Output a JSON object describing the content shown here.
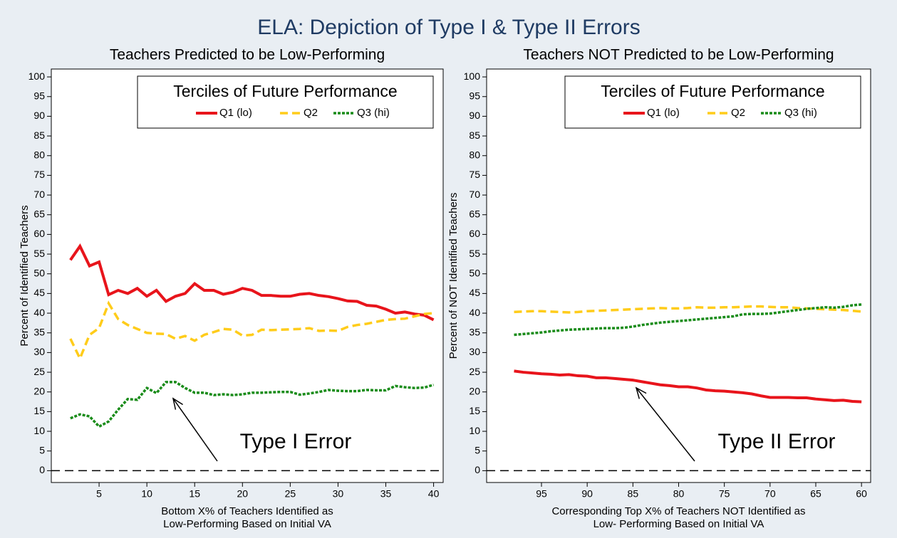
{
  "title": "ELA: Depiction of Type I & Type II Errors",
  "chart_data": [
    {
      "type": "line",
      "title": "Teachers Predicted to be Low-Performing",
      "xlabel": [
        "Bottom X% of Teachers Identified as",
        "Low-Performing Based on Initial VA"
      ],
      "ylabel": "Percent of Identified Teachers",
      "legend_title": "Terciles of Future Performance",
      "legend": "upper right",
      "annotation": "Type I Error",
      "hline": 0,
      "xlim": [
        0,
        41
      ],
      "ylim": [
        -3,
        102
      ],
      "xticks": [
        5,
        10,
        15,
        20,
        25,
        30,
        35,
        40
      ],
      "yticks": [
        0,
        5,
        10,
        15,
        20,
        25,
        30,
        35,
        40,
        45,
        50,
        55,
        60,
        65,
        70,
        75,
        80,
        85,
        90,
        95,
        100
      ],
      "x": [
        2,
        3,
        4,
        5,
        6,
        7,
        8,
        9,
        10,
        11,
        12,
        13,
        14,
        15,
        16,
        17,
        18,
        19,
        20,
        21,
        22,
        23,
        24,
        25,
        26,
        27,
        28,
        29,
        30,
        31,
        32,
        33,
        34,
        35,
        36,
        37,
        38,
        39,
        40
      ],
      "series": [
        {
          "name": "Q1 (lo)",
          "color": "#e8141b",
          "style": "solid",
          "values": [
            53.5,
            57,
            52,
            53,
            44.7,
            45.8,
            45,
            46.3,
            44.3,
            45.8,
            43,
            44.3,
            45,
            47.5,
            45.8,
            45.8,
            44.8,
            45.3,
            46.3,
            45.8,
            44.5,
            44.5,
            44.3,
            44.3,
            44.8,
            45,
            44.5,
            44.2,
            43.7,
            43.1,
            43,
            42,
            41.8,
            41,
            40,
            40.3,
            39.8,
            39.5,
            38.3
          ]
        },
        {
          "name": "Q2",
          "color": "#ffcc1a",
          "style": "dashed",
          "values": [
            33.5,
            28.5,
            34.5,
            36.2,
            42.5,
            38.5,
            37,
            36,
            35,
            34.8,
            34.7,
            33.5,
            34.2,
            33,
            34.5,
            35.2,
            36,
            35.8,
            34.3,
            34.5,
            35.8,
            35.7,
            35.8,
            35.9,
            36,
            36.2,
            35.5,
            35.6,
            35.5,
            36.5,
            37,
            37.3,
            37.8,
            38.3,
            38.5,
            38.6,
            39.2,
            39.8,
            40
          ]
        },
        {
          "name": "Q3 (hi)",
          "color": "#1a8c1a",
          "style": "dotted",
          "values": [
            13.3,
            14.3,
            13.8,
            11.2,
            12.5,
            15.5,
            18.2,
            18,
            21,
            19.7,
            22.5,
            22.5,
            21,
            19.8,
            19.8,
            19.2,
            19.4,
            19.2,
            19.4,
            19.8,
            19.8,
            19.9,
            20,
            20,
            19.3,
            19.6,
            20,
            20.5,
            20.3,
            20.2,
            20.2,
            20.5,
            20.4,
            20.4,
            21.5,
            21.2,
            21,
            21.1,
            21.8
          ]
        }
      ]
    },
    {
      "type": "line",
      "title": "Teachers NOT Predicted to be Low-Performing",
      "xlabel": [
        "Corresponding Top X% of Teachers NOT Identified as",
        "Low- Performing Based on Initial VA"
      ],
      "ylabel": "Percent of NOT Identified Teachers",
      "legend_title": "Terciles of Future Performance",
      "legend": "upper right",
      "annotation": "Type II Error",
      "hline": 0,
      "xlim": [
        101,
        59
      ],
      "ylim": [
        -3,
        102
      ],
      "xticks": [
        95,
        90,
        85,
        80,
        75,
        70,
        65,
        60
      ],
      "yticks": [
        0,
        5,
        10,
        15,
        20,
        25,
        30,
        35,
        40,
        45,
        50,
        55,
        60,
        65,
        70,
        75,
        80,
        85,
        90,
        95,
        100
      ],
      "x": [
        98,
        97,
        96,
        95,
        94,
        93,
        92,
        91,
        90,
        89,
        88,
        87,
        86,
        85,
        84,
        83,
        82,
        81,
        80,
        79,
        78,
        77,
        76,
        75,
        74,
        73,
        72,
        71,
        70,
        69,
        68,
        67,
        66,
        65,
        64,
        63,
        62,
        61,
        60
      ],
      "series": [
        {
          "name": "Q1 (lo)",
          "color": "#e8141b",
          "style": "solid",
          "values": [
            25.3,
            25,
            24.8,
            24.6,
            24.5,
            24.3,
            24.4,
            24.1,
            24,
            23.6,
            23.6,
            23.4,
            23.2,
            23,
            22.6,
            22.2,
            21.8,
            21.6,
            21.3,
            21.3,
            21,
            20.5,
            20.3,
            20.2,
            20,
            19.8,
            19.5,
            19,
            18.6,
            18.6,
            18.6,
            18.5,
            18.5,
            18.2,
            18,
            17.8,
            17.9,
            17.6,
            17.5
          ]
        },
        {
          "name": "Q2",
          "color": "#ffcc1a",
          "style": "dashed",
          "values": [
            40.3,
            40.4,
            40.5,
            40.5,
            40.4,
            40.3,
            40.2,
            40.3,
            40.5,
            40.6,
            40.7,
            40.8,
            40.9,
            41,
            41.1,
            41.2,
            41.3,
            41.2,
            41.2,
            41.3,
            41.5,
            41.4,
            41.4,
            41.5,
            41.5,
            41.6,
            41.7,
            41.7,
            41.6,
            41.5,
            41.5,
            41.3,
            41.2,
            41.1,
            41,
            40.9,
            40.8,
            40.6,
            40.4
          ]
        },
        {
          "name": "Q3 (hi)",
          "color": "#1a8c1a",
          "style": "dotted",
          "values": [
            34.5,
            34.7,
            34.9,
            35.1,
            35.4,
            35.6,
            35.8,
            35.9,
            36,
            36.1,
            36.2,
            36.2,
            36.3,
            36.6,
            37,
            37.3,
            37.6,
            37.8,
            38,
            38.2,
            38.4,
            38.6,
            38.8,
            39,
            39.2,
            39.7,
            39.8,
            39.8,
            39.9,
            40.2,
            40.5,
            40.8,
            41.1,
            41.3,
            41.5,
            41.4,
            41.6,
            42,
            42.2
          ]
        }
      ]
    }
  ]
}
